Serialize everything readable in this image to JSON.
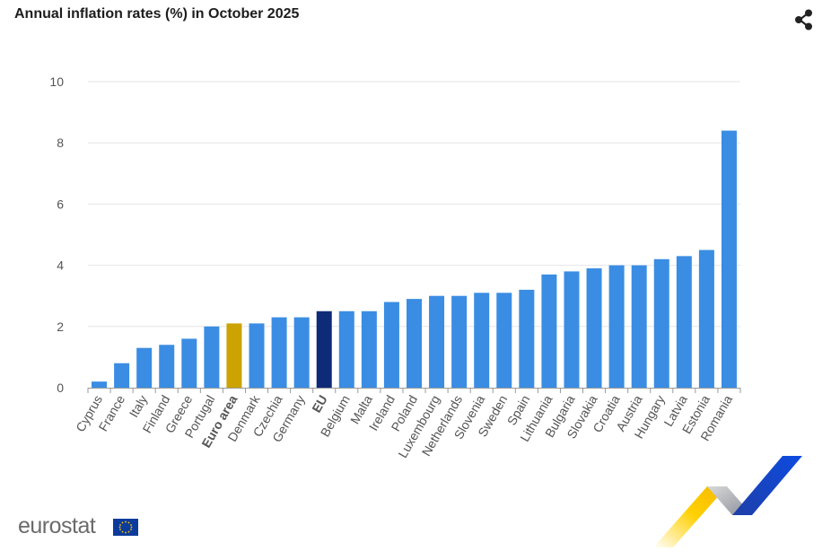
{
  "header": {
    "title": "Annual inflation rates (%) in October 2025",
    "share_icon": "share-icon"
  },
  "branding": {
    "logo_text": "eurostat",
    "flag_icon": "eu-flag-icon"
  },
  "colors": {
    "bar": "#3a8de3",
    "euro_area": "#cca300",
    "eu": "#0e2b78",
    "grid": "#e6e6e6",
    "axis": "#999999"
  },
  "chart_data": {
    "type": "bar",
    "title": "Annual inflation rates (%) in October 2025",
    "xlabel": "",
    "ylabel": "",
    "ylim": [
      0,
      10
    ],
    "yticks": [
      0,
      2,
      4,
      6,
      8,
      10
    ],
    "grid": true,
    "categories": [
      "Cyprus",
      "France",
      "Italy",
      "Finland",
      "Greece",
      "Portugal",
      "Euro area",
      "Denmark",
      "Czechia",
      "Germany",
      "EU",
      "Belgium",
      "Malta",
      "Ireland",
      "Poland",
      "Luxembourg",
      "Netherlands",
      "Slovenia",
      "Sweden",
      "Spain",
      "Lithuania",
      "Bulgaria",
      "Slovakia",
      "Croatia",
      "Austria",
      "Hungary",
      "Latvia",
      "Estonia",
      "Romania"
    ],
    "values": [
      0.2,
      0.8,
      1.3,
      1.4,
      1.6,
      2.0,
      2.1,
      2.1,
      2.3,
      2.3,
      2.5,
      2.5,
      2.5,
      2.8,
      2.9,
      3.0,
      3.0,
      3.1,
      3.1,
      3.2,
      3.7,
      3.8,
      3.9,
      4.0,
      4.0,
      4.2,
      4.3,
      4.5,
      8.4
    ],
    "highlighted": {
      "Euro area": "euro_area",
      "EU": "eu"
    }
  }
}
